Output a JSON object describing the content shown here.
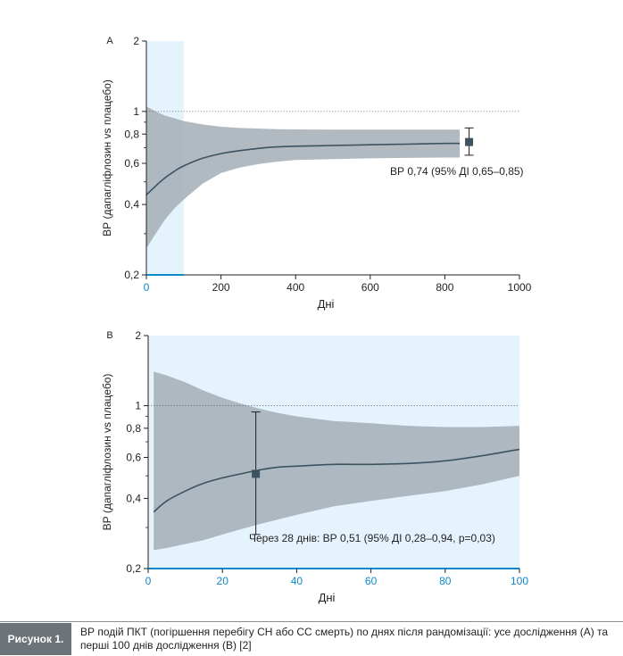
{
  "chart_data": [
    {
      "type": "line",
      "panel_label": "A",
      "ylabel": "ВР (дапагліфлозин vs плацебо)",
      "xlabel": "Дні",
      "xlim": [
        0,
        1000
      ],
      "ylim": [
        0.2,
        2
      ],
      "yscale": "log",
      "xticks": [
        "0",
        "200",
        "400",
        "600",
        "800",
        "1000"
      ],
      "yticks": [
        {
          "value": 0.2,
          "label": "0,2"
        },
        {
          "value": 0.4,
          "label": "0,4"
        },
        {
          "value": 0.6,
          "label": "0,6"
        },
        {
          "value": 0.8,
          "label": "0,8"
        },
        {
          "value": 1,
          "label": "1"
        },
        {
          "value": 2,
          "label": "2"
        }
      ],
      "reference_line": 1,
      "shaded_x_range": [
        0,
        100
      ],
      "series": [
        {
          "x": [
            0,
            25,
            50,
            75,
            100,
            150,
            200,
            250,
            300,
            350,
            400,
            500,
            600,
            700,
            800,
            840
          ],
          "y": [
            0.44,
            0.48,
            0.52,
            0.555,
            0.585,
            0.63,
            0.66,
            0.68,
            0.695,
            0.705,
            0.71,
            0.715,
            0.72,
            0.725,
            0.73,
            0.73
          ],
          "lower": [
            0.26,
            0.3,
            0.345,
            0.385,
            0.42,
            0.49,
            0.545,
            0.575,
            0.595,
            0.61,
            0.62,
            0.625,
            0.63,
            0.633,
            0.635,
            0.635
          ],
          "upper": [
            1.05,
            1.0,
            0.96,
            0.935,
            0.91,
            0.88,
            0.86,
            0.85,
            0.845,
            0.84,
            0.838,
            0.836,
            0.836,
            0.836,
            0.836,
            0.836
          ]
        }
      ],
      "point_estimate": {
        "x": 865,
        "y": 0.74,
        "lower": 0.65,
        "upper": 0.85
      },
      "annotation": "ВР 0,74 (95% ДІ 0,65–0,85)"
    },
    {
      "type": "line",
      "panel_label": "B",
      "ylabel": "ВР (дапагліфлозин vs плацебо)",
      "xlabel": "Дні",
      "xlim": [
        0,
        100
      ],
      "ylim": [
        0.2,
        2
      ],
      "yscale": "log",
      "xticks": [
        "0",
        "20",
        "40",
        "60",
        "80",
        "100"
      ],
      "yticks": [
        {
          "value": 0.2,
          "label": "0,2"
        },
        {
          "value": 0.4,
          "label": "0,4"
        },
        {
          "value": 0.6,
          "label": "0,6"
        },
        {
          "value": 0.8,
          "label": "0,8"
        },
        {
          "value": 1,
          "label": "1"
        },
        {
          "value": 2,
          "label": "2"
        }
      ],
      "reference_line": 1,
      "shaded_x_range": [
        0,
        100
      ],
      "series": [
        {
          "x": [
            1.5,
            5,
            10,
            15,
            20,
            25,
            30,
            35,
            40,
            50,
            60,
            70,
            80,
            90,
            100
          ],
          "y": [
            0.35,
            0.39,
            0.43,
            0.465,
            0.49,
            0.51,
            0.53,
            0.545,
            0.55,
            0.56,
            0.56,
            0.565,
            0.58,
            0.61,
            0.65
          ],
          "lower": [
            0.24,
            0.245,
            0.255,
            0.265,
            0.28,
            0.295,
            0.31,
            0.325,
            0.34,
            0.37,
            0.39,
            0.41,
            0.43,
            0.46,
            0.5
          ],
          "upper": [
            1.4,
            1.35,
            1.26,
            1.16,
            1.08,
            1.02,
            0.97,
            0.93,
            0.9,
            0.86,
            0.84,
            0.82,
            0.81,
            0.81,
            0.82
          ]
        }
      ],
      "point_estimate": {
        "x": 29,
        "y": 0.51,
        "lower": 0.28,
        "upper": 0.94
      },
      "annotation": "Через 28 днів: ВР 0,51 (95% ДІ 0,28–0,94, p=0,03)"
    }
  ],
  "colors": {
    "band": "#a3adb6",
    "line": "#3d5360",
    "marker": "#3d5360",
    "highlight": "#e5f3fc",
    "axis": "#231f20",
    "tick_x": "#0d8acb",
    "highlight_axis": "#0d8acb"
  },
  "caption": {
    "label": "Рисунок 1.",
    "text": "ВР подій ПКТ (погіршення перебігу СН або СС смерть) по днях після рандомізації: усе дослідження (А) та перші 100 днів дослідження (В) [2]"
  }
}
